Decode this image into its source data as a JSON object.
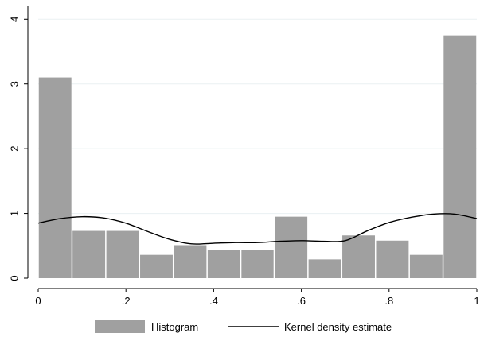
{
  "chart_data": {
    "type": "bar",
    "title": "",
    "xlabel": "",
    "ylabel": "",
    "xlim": [
      0,
      1
    ],
    "ylim": [
      0,
      4
    ],
    "grid": true,
    "legend_position": "bottom",
    "x_ticks": [
      {
        "value": 0,
        "label": "0"
      },
      {
        "value": 0.2,
        "label": ".2"
      },
      {
        "value": 0.4,
        "label": ".4"
      },
      {
        "value": 0.6,
        "label": ".6"
      },
      {
        "value": 0.8,
        "label": ".8"
      },
      {
        "value": 1,
        "label": "1"
      }
    ],
    "y_ticks": [
      {
        "value": 0,
        "label": "0"
      },
      {
        "value": 1,
        "label": "1"
      },
      {
        "value": 2,
        "label": "2"
      },
      {
        "value": 3,
        "label": "3"
      },
      {
        "value": 4,
        "label": "4"
      }
    ],
    "series": [
      {
        "name": "Histogram",
        "kind": "histogram",
        "color": "#a0a0a0",
        "bin_edges": [
          0.0,
          0.077,
          0.154,
          0.231,
          0.308,
          0.385,
          0.462,
          0.538,
          0.615,
          0.692,
          0.769,
          0.846,
          0.923,
          1.0
        ],
        "values": [
          3.1,
          0.73,
          0.73,
          0.36,
          0.51,
          0.44,
          0.44,
          0.95,
          0.29,
          0.66,
          0.58,
          0.36,
          3.75
        ]
      },
      {
        "name": "Kernel density estimate",
        "kind": "line",
        "color": "#000000",
        "points": [
          [
            0.0,
            0.85
          ],
          [
            0.05,
            0.92
          ],
          [
            0.1,
            0.95
          ],
          [
            0.15,
            0.93
          ],
          [
            0.2,
            0.85
          ],
          [
            0.25,
            0.72
          ],
          [
            0.3,
            0.6
          ],
          [
            0.35,
            0.53
          ],
          [
            0.4,
            0.54
          ],
          [
            0.45,
            0.55
          ],
          [
            0.5,
            0.55
          ],
          [
            0.55,
            0.57
          ],
          [
            0.6,
            0.58
          ],
          [
            0.65,
            0.57
          ],
          [
            0.7,
            0.58
          ],
          [
            0.75,
            0.73
          ],
          [
            0.8,
            0.86
          ],
          [
            0.85,
            0.94
          ],
          [
            0.9,
            0.99
          ],
          [
            0.95,
            0.99
          ],
          [
            1.0,
            0.92
          ]
        ]
      }
    ]
  }
}
